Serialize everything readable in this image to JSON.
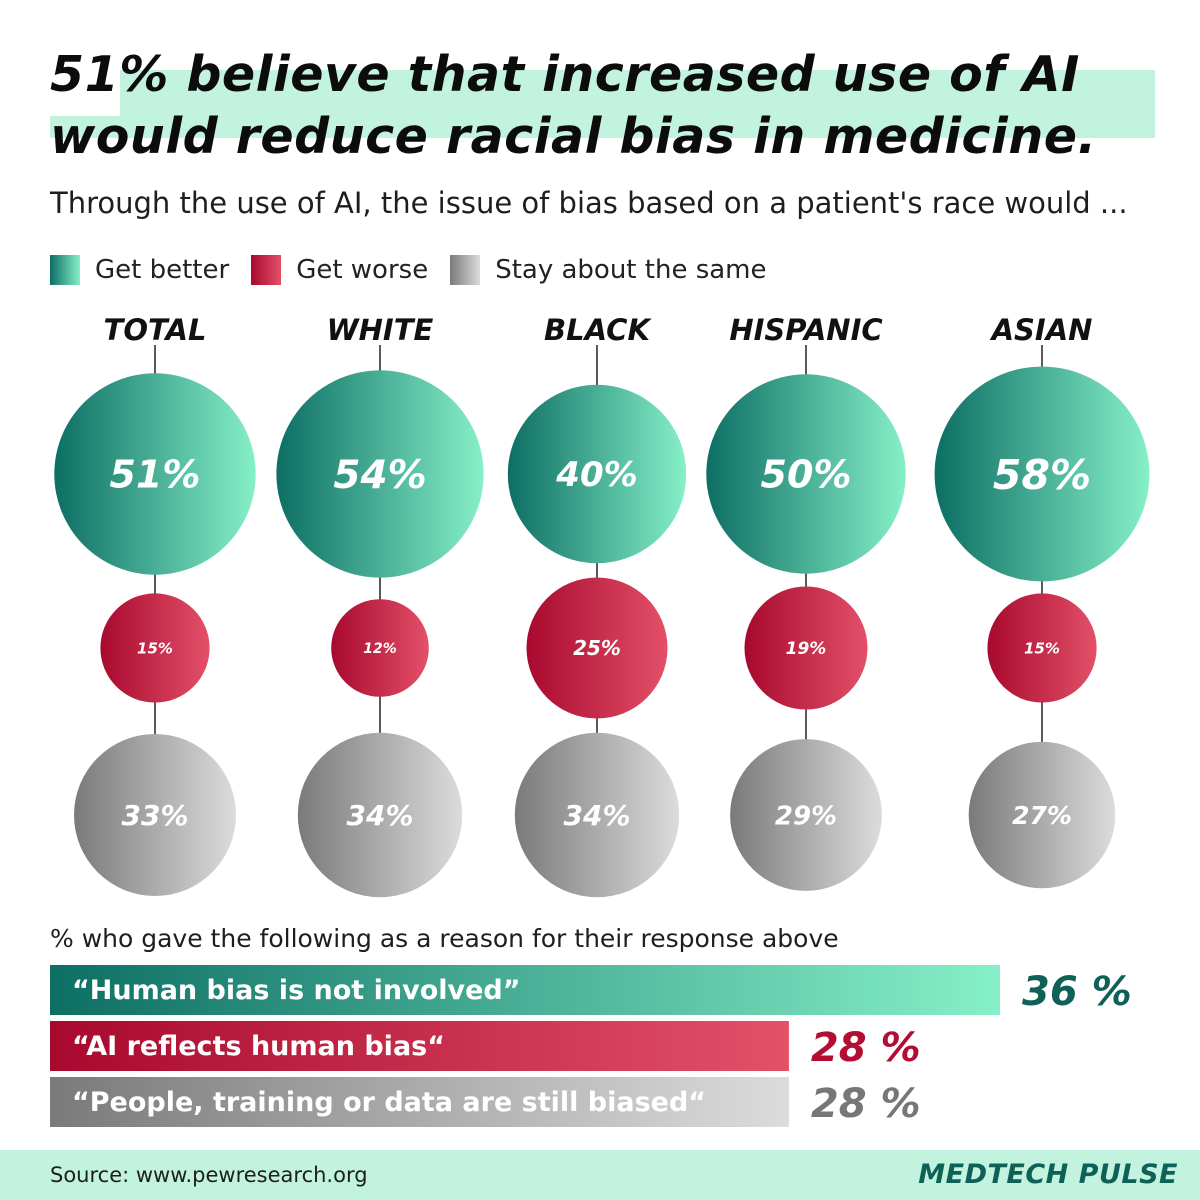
{
  "header": {
    "title_line1": "51% believe that increased use of AI",
    "title_line2": "would reduce racial bias in medicine.",
    "subtitle": "Through the use of AI, the issue of bias based on a patient's race would ..."
  },
  "colors": {
    "better": [
      "#0d6e64",
      "#86f0c8"
    ],
    "worse": [
      "#a8092e",
      "#e35068"
    ],
    "same": [
      "#7a7a7a",
      "#dcdcdc"
    ],
    "highlight": "#c2f3df",
    "brand": "#0f6158"
  },
  "chart_data": [
    {
      "type": "bubble",
      "title": "Through the use of AI, the issue of bias based on a patient's race would ...",
      "legend": [
        "Get better",
        "Get worse",
        "Stay about the same"
      ],
      "legend_position": "top-left",
      "categories": [
        "TOTAL",
        "WHITE",
        "BLACK",
        "HISPANIC",
        "ASIAN"
      ],
      "series": [
        {
          "name": "Get better",
          "values": [
            51,
            54,
            40,
            50,
            58
          ],
          "labels": [
            "51%",
            "54%",
            "40%",
            "50%",
            "58%"
          ]
        },
        {
          "name": "Get worse",
          "values": [
            15,
            12,
            25,
            19,
            15
          ],
          "labels": [
            "15%",
            "12%",
            "25%",
            "19%",
            "15%"
          ]
        },
        {
          "name": "Stay about the same",
          "values": [
            33,
            34,
            34,
            29,
            27
          ],
          "labels": [
            "33%",
            "34%",
            "34%",
            "29%",
            "27%"
          ]
        }
      ],
      "unit": "%"
    },
    {
      "type": "bar",
      "orientation": "horizontal",
      "title": "% who gave the following as a reason for their response above",
      "categories": [
        "“Human bias is not involved”",
        "“AI reflects human bias“",
        "“People, training or data are still biased“"
      ],
      "values": [
        36,
        28,
        28
      ],
      "labels": [
        "36 %",
        "28 %",
        "28 %"
      ],
      "xlim": [
        0,
        36
      ],
      "unit": "%"
    }
  ],
  "reasons": {
    "note": "% who gave the following as a reason for their response above"
  },
  "footer": {
    "source": "Source: www.pewresearch.org",
    "brand": "MEDTECH PULSE"
  }
}
